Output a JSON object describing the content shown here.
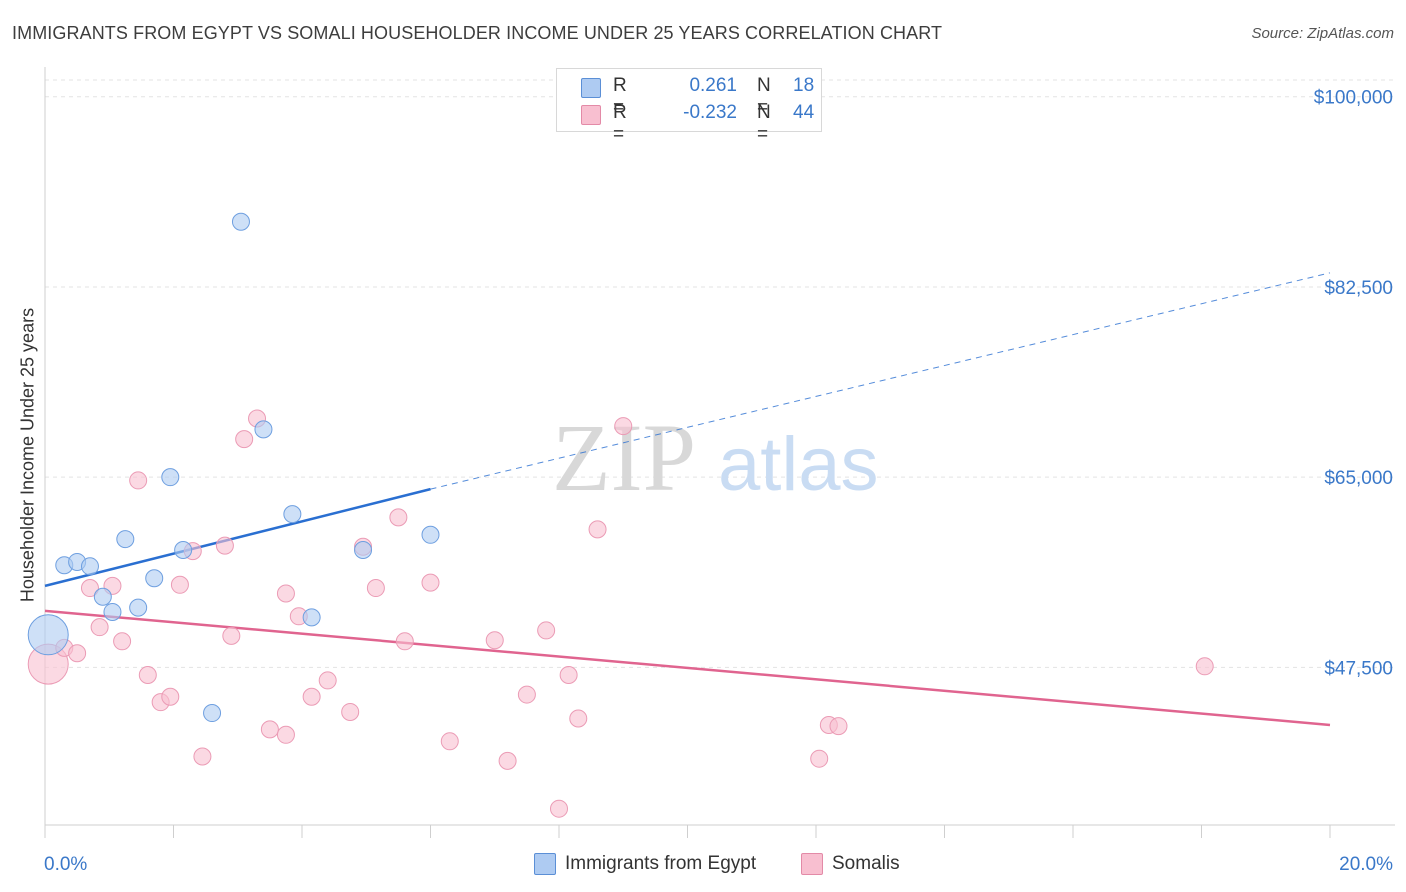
{
  "title": "IMMIGRANTS FROM EGYPT VS SOMALI HOUSEHOLDER INCOME UNDER 25 YEARS CORRELATION CHART",
  "source": "Source: ZipAtlas.com",
  "watermark": {
    "zip": "ZIP",
    "atlas": "atlas"
  },
  "legend_top": {
    "rows": [
      {
        "r_label": "R =",
        "r_value": "0.261",
        "n_label": "N =",
        "n_value": "18",
        "color": "#aecbf2"
      },
      {
        "r_label": "R =",
        "r_value": "-0.232",
        "n_label": "N =",
        "n_value": "44",
        "color": "#f8bfd0"
      }
    ]
  },
  "legend_bottom": [
    {
      "label": "Immigrants from Egypt",
      "color": "#aecbf2"
    },
    {
      "label": "Somalis",
      "color": "#f8bfd0"
    }
  ],
  "chart_data": {
    "type": "scatter",
    "ylabel": "Householder Income Under 25 years",
    "xlabel": "",
    "xlim": [
      0,
      20
    ],
    "ylim": [
      33000,
      102000
    ],
    "x_tick_labels": [
      "0.0%",
      "20.0%"
    ],
    "y_ticks": [
      47500,
      65000,
      82500,
      100000
    ],
    "y_tick_labels": [
      "$47,500",
      "$65,000",
      "$82,500",
      "$100,000"
    ],
    "grid": "horizontal-dashed",
    "legend_position": "top-center",
    "colors": {
      "egypt_fill": "#aecbf2",
      "egypt_line": "#2a6fd1",
      "somali_fill": "#f8bfd0",
      "somali_line": "#e0648f",
      "tick_label": "#3a78c9"
    },
    "series": [
      {
        "name": "Immigrants from Egypt",
        "points": [
          {
            "x": 0.05,
            "y": 50500,
            "size": "large"
          },
          {
            "x": 0.3,
            "y": 56900
          },
          {
            "x": 0.5,
            "y": 57200
          },
          {
            "x": 0.7,
            "y": 56800
          },
          {
            "x": 0.9,
            "y": 54000
          },
          {
            "x": 1.05,
            "y": 52600
          },
          {
            "x": 1.25,
            "y": 59300
          },
          {
            "x": 1.45,
            "y": 53000
          },
          {
            "x": 1.7,
            "y": 55700
          },
          {
            "x": 1.95,
            "y": 65000
          },
          {
            "x": 2.15,
            "y": 58300
          },
          {
            "x": 2.6,
            "y": 43300
          },
          {
            "x": 3.05,
            "y": 88500
          },
          {
            "x": 3.4,
            "y": 69400
          },
          {
            "x": 3.85,
            "y": 61600
          },
          {
            "x": 4.15,
            "y": 52100
          },
          {
            "x": 4.95,
            "y": 58300
          },
          {
            "x": 6.0,
            "y": 59700
          }
        ],
        "trend": {
          "x0": 0,
          "y0": 55000,
          "x1": 6.0,
          "y1": 63900,
          "dash_to_x": 20,
          "dash_to_y": 83800
        }
      },
      {
        "name": "Somalis",
        "points": [
          {
            "x": 0.05,
            "y": 47800,
            "size": "large"
          },
          {
            "x": 0.3,
            "y": 49300
          },
          {
            "x": 0.5,
            "y": 48800
          },
          {
            "x": 0.7,
            "y": 54800
          },
          {
            "x": 0.85,
            "y": 51200
          },
          {
            "x": 1.05,
            "y": 55000
          },
          {
            "x": 1.2,
            "y": 49900
          },
          {
            "x": 1.45,
            "y": 64700
          },
          {
            "x": 1.6,
            "y": 46800
          },
          {
            "x": 1.8,
            "y": 44300
          },
          {
            "x": 1.95,
            "y": 44800
          },
          {
            "x": 2.1,
            "y": 55100
          },
          {
            "x": 2.3,
            "y": 58200
          },
          {
            "x": 2.45,
            "y": 39300
          },
          {
            "x": 2.8,
            "y": 58700
          },
          {
            "x": 2.9,
            "y": 50400
          },
          {
            "x": 3.1,
            "y": 68500
          },
          {
            "x": 3.3,
            "y": 70400
          },
          {
            "x": 3.5,
            "y": 41800
          },
          {
            "x": 3.75,
            "y": 41300
          },
          {
            "x": 3.75,
            "y": 54300
          },
          {
            "x": 3.95,
            "y": 52200
          },
          {
            "x": 4.15,
            "y": 44800
          },
          {
            "x": 4.4,
            "y": 46300
          },
          {
            "x": 4.75,
            "y": 43400
          },
          {
            "x": 4.95,
            "y": 58600
          },
          {
            "x": 5.15,
            "y": 54800
          },
          {
            "x": 5.5,
            "y": 61300
          },
          {
            "x": 5.6,
            "y": 49900
          },
          {
            "x": 6.0,
            "y": 55300
          },
          {
            "x": 6.3,
            "y": 40700
          },
          {
            "x": 7.0,
            "y": 50000
          },
          {
            "x": 7.2,
            "y": 38900
          },
          {
            "x": 7.5,
            "y": 45000
          },
          {
            "x": 7.8,
            "y": 50900
          },
          {
            "x": 8.0,
            "y": 34500
          },
          {
            "x": 8.15,
            "y": 46800
          },
          {
            "x": 8.3,
            "y": 42800
          },
          {
            "x": 8.6,
            "y": 60200
          },
          {
            "x": 9.0,
            "y": 69700
          },
          {
            "x": 12.05,
            "y": 39100
          },
          {
            "x": 12.2,
            "y": 42200
          },
          {
            "x": 12.35,
            "y": 42100
          },
          {
            "x": 18.05,
            "y": 47600
          }
        ],
        "trend": {
          "x0": 0,
          "y0": 52700,
          "x1": 20,
          "y1": 42200
        }
      }
    ]
  }
}
